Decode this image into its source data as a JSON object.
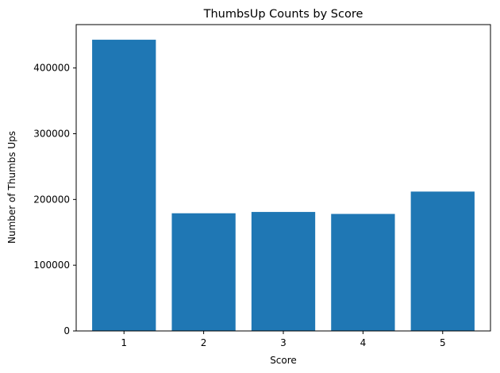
{
  "chart_data": {
    "type": "bar",
    "title": "ThumbsUp Counts by Score",
    "xlabel": "Score",
    "ylabel": "Number of Thumbs Ups",
    "categories": [
      "1",
      "2",
      "3",
      "4",
      "5"
    ],
    "values": [
      443000,
      179000,
      181000,
      178000,
      212000
    ],
    "ylim": [
      0,
      466000
    ],
    "yticks": [
      0,
      100000,
      200000,
      300000,
      400000
    ],
    "ytick_labels": [
      "0",
      "100000",
      "200000",
      "300000",
      "400000"
    ],
    "grid": false,
    "bar_color": "#1f77b4"
  }
}
